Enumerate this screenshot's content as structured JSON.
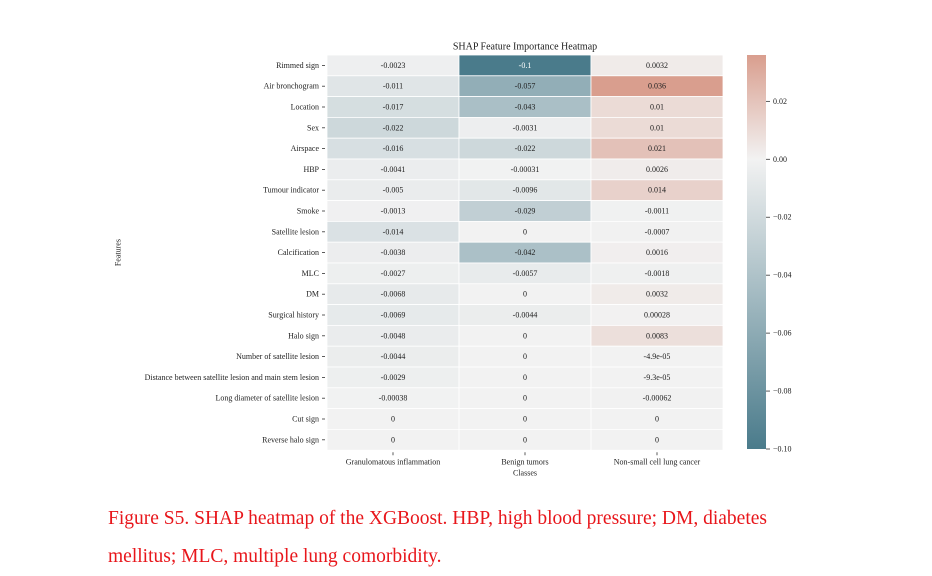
{
  "chart_data": {
    "type": "heatmap",
    "title": "SHAP Feature Importance Heatmap",
    "xlabel": "Classes",
    "ylabel": "Features",
    "x_categories": [
      "Granulomatous inflammation",
      "Benign tumors",
      "Non-small cell lung cancer"
    ],
    "y_categories": [
      "Rimmed sign",
      "Air bronchogram",
      "Location",
      "Sex",
      "Airspace",
      "HBP",
      "Tumour indicator",
      "Smoke",
      "Satellite lesion",
      "Calcification",
      "MLC",
      "DM",
      "Surgical history",
      "Halo sign",
      "Number of satellite lesion",
      "Distance between satellite lesion and main stem lesion",
      "Long diameter of satellite lesion",
      "Cut sign",
      "Reverse halo sign"
    ],
    "values": [
      [
        -0.0023,
        -0.1,
        0.0032
      ],
      [
        -0.011,
        -0.057,
        0.036
      ],
      [
        -0.017,
        -0.043,
        0.01
      ],
      [
        -0.022,
        -0.0031,
        0.01
      ],
      [
        -0.016,
        -0.022,
        0.021
      ],
      [
        -0.0041,
        -0.00031,
        0.0026
      ],
      [
        -0.005,
        -0.0096,
        0.014
      ],
      [
        -0.0013,
        -0.029,
        -0.0011
      ],
      [
        -0.014,
        0,
        -0.0007
      ],
      [
        -0.0038,
        -0.042,
        0.0016
      ],
      [
        -0.0027,
        -0.0057,
        -0.0018
      ],
      [
        -0.0068,
        0,
        0.0032
      ],
      [
        -0.0069,
        -0.0044,
        0.00028
      ],
      [
        -0.0048,
        0,
        0.0083
      ],
      [
        -0.0044,
        0,
        -4.9e-05
      ],
      [
        -0.0029,
        0,
        -9.3e-05
      ],
      [
        -0.00038,
        0,
        -0.00062
      ],
      [
        0,
        0,
        0
      ],
      [
        0,
        0,
        0
      ]
    ],
    "cell_labels": [
      [
        "-0.0023",
        "-0.1",
        "0.0032"
      ],
      [
        "-0.011",
        "-0.057",
        "0.036"
      ],
      [
        "-0.017",
        "-0.043",
        "0.01"
      ],
      [
        "-0.022",
        "-0.0031",
        "0.01"
      ],
      [
        "-0.016",
        "-0.022",
        "0.021"
      ],
      [
        "-0.0041",
        "-0.00031",
        "0.0026"
      ],
      [
        "-0.005",
        "-0.0096",
        "0.014"
      ],
      [
        "-0.0013",
        "-0.029",
        "-0.0011"
      ],
      [
        "-0.014",
        "0",
        "-0.0007"
      ],
      [
        "-0.0038",
        "-0.042",
        "0.0016"
      ],
      [
        "-0.0027",
        "-0.0057",
        "-0.0018"
      ],
      [
        "-0.0068",
        "0",
        "0.0032"
      ],
      [
        "-0.0069",
        "-0.0044",
        "0.00028"
      ],
      [
        "-0.0048",
        "0",
        "0.0083"
      ],
      [
        "-0.0044",
        "0",
        "-4.9e-05"
      ],
      [
        "-0.0029",
        "0",
        "-9.3e-05"
      ],
      [
        "-0.00038",
        "0",
        "-0.00062"
      ],
      [
        "0",
        "0",
        "0"
      ],
      [
        "0",
        "0",
        "0"
      ]
    ],
    "colorbar": {
      "vmin": -0.1,
      "vmax": 0.036,
      "ticks": [
        0.02,
        0.0,
        -0.02,
        -0.04,
        -0.06,
        -0.08,
        -0.1
      ],
      "tick_labels": [
        "0.02",
        "0.00",
        "−0.02",
        "−0.04",
        "−0.06",
        "−0.08",
        "−0.10"
      ],
      "color_negative": "#4a7b8b",
      "color_center": "#f2f2f2",
      "color_positive": "#d99e8e"
    }
  },
  "caption": "Figure S5. SHAP heatmap of the XGBoost. HBP, high blood pressure; DM, diabetes mellitus; MLC, multiple lung comorbidity."
}
